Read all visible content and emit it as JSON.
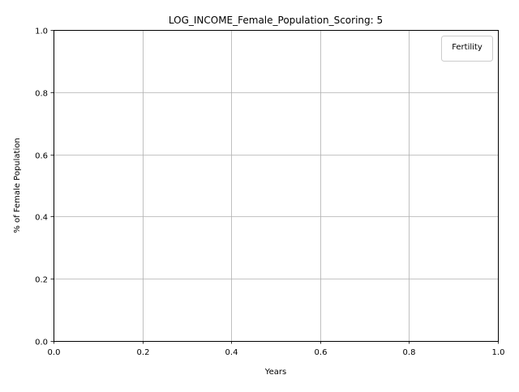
{
  "chart_data": {
    "type": "line",
    "title": "LOG_INCOME_Female_Population_Scoring: 5",
    "xlabel": "Years",
    "ylabel": "% of Female Population",
    "xlim": [
      0.0,
      1.0
    ],
    "ylim": [
      0.0,
      1.0
    ],
    "x_ticks": [
      0.0,
      0.2,
      0.4,
      0.6,
      0.8,
      1.0
    ],
    "y_ticks": [
      0.0,
      0.2,
      0.4,
      0.6,
      0.8,
      1.0
    ],
    "x_tick_labels": [
      "0.0",
      "0.2",
      "0.4",
      "0.6",
      "0.8",
      "1.0"
    ],
    "y_tick_labels": [
      "0.0",
      "0.2",
      "0.4",
      "0.6",
      "0.8",
      "1.0"
    ],
    "grid": true,
    "legend": {
      "title": "Fertility",
      "placement": "top-right",
      "entries": []
    },
    "series": []
  },
  "colors": {
    "grid": "#b0b0b0",
    "axis": "#000000",
    "background": "#ffffff",
    "legend_border": "#cccccc"
  }
}
